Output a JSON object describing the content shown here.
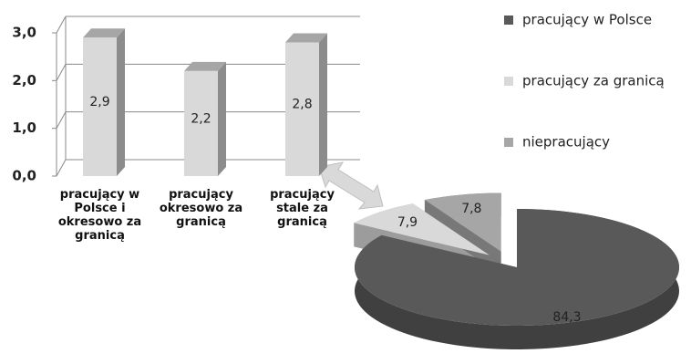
{
  "chart_data": [
    {
      "type": "bar",
      "categories": [
        "pracujący w Polsce i okresowo za granicą",
        "pracujący okresowo za granicą",
        "pracujący stale za granicą"
      ],
      "values": [
        2.9,
        2.2,
        2.8
      ],
      "value_labels": [
        "2,9",
        "2,2",
        "2,8"
      ],
      "color": "#d9d9d9",
      "ylim": [
        0,
        3
      ],
      "yticks": [
        {
          "value": 0,
          "label": "0,0"
        },
        {
          "value": 1,
          "label": "1,0"
        },
        {
          "value": 2,
          "label": "2,0"
        },
        {
          "value": 3,
          "label": "3,0"
        }
      ],
      "grid": true
    },
    {
      "type": "pie",
      "categories": [
        "pracujący w Polsce",
        "pracujący za granicą",
        "niepracujący"
      ],
      "values": [
        84.3,
        7.9,
        7.8
      ],
      "value_labels": [
        "84,3",
        "7,9",
        "7,8"
      ],
      "colors": [
        "#595959",
        "#d9d9d9",
        "#a6a6a6"
      ],
      "legend": "right"
    }
  ]
}
